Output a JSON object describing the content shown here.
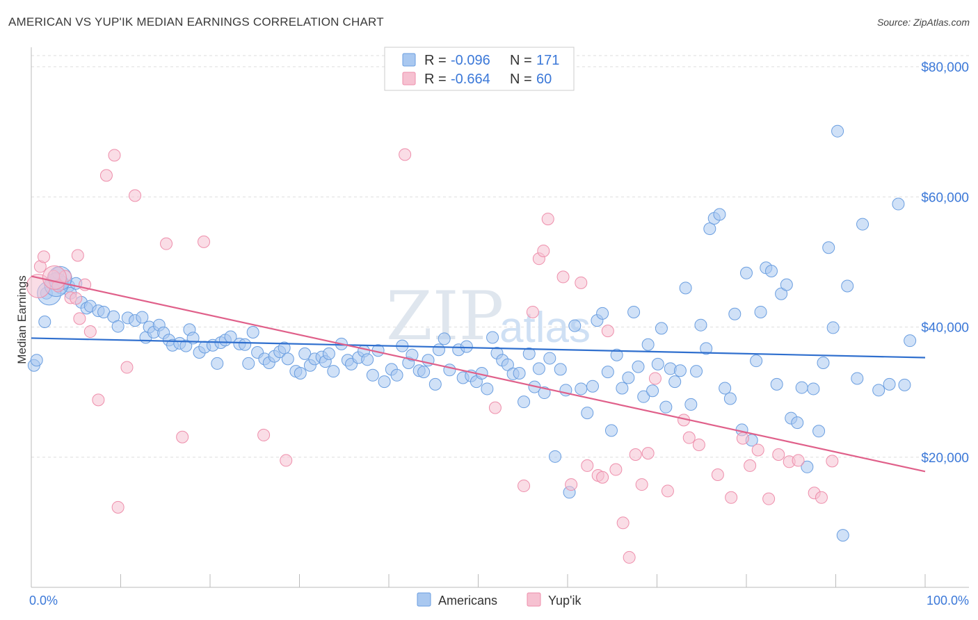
{
  "title": "AMERICAN VS YUP'IK MEDIAN EARNINGS CORRELATION CHART",
  "source": "Source: ZipAtlas.com",
  "watermark": {
    "main": "ZIP",
    "sub": "atlas"
  },
  "colors": {
    "americans_fill": "#a9c8f0",
    "americans_stroke": "#6a9ee0",
    "americans_line": "#2f6fce",
    "yupik_fill": "#f6c1d1",
    "yupik_stroke": "#ee8eab",
    "yupik_line": "#e0608a",
    "axis_text": "#3b78d8",
    "grid": "#dddddd"
  },
  "legend_top": {
    "rows": [
      {
        "r_label": "R =",
        "r_value": "-0.096",
        "n_label": "N =",
        "n_value": "171"
      },
      {
        "r_label": "R =",
        "r_value": "-0.664",
        "n_label": "N =",
        "n_value": "60"
      }
    ]
  },
  "chart_data": {
    "type": "scatter",
    "xlabel": "",
    "ylabel": "Median Earnings",
    "x_tick_labels": [
      "0.0%",
      "100.0%"
    ],
    "y_tick_labels": [
      "$20,000",
      "$40,000",
      "$60,000",
      "$80,000"
    ],
    "y_ticks": [
      20000,
      40000,
      60000,
      80000
    ],
    "xlim": [
      0,
      100
    ],
    "ylim": [
      0,
      80000
    ],
    "grid": true,
    "legend_position": "bottom-center",
    "series": [
      {
        "name": "Americans",
        "trend": {
          "x": [
            0,
            100
          ],
          "y": [
            38300,
            35300
          ]
        },
        "points": [
          [
            0.3,
            34100
          ],
          [
            0.6,
            34900
          ],
          [
            1.5,
            40800
          ],
          [
            1.7,
            45200
          ],
          [
            2.2,
            46800
          ],
          [
            2.8,
            47500
          ],
          [
            3.0,
            48300
          ],
          [
            3.3,
            46000
          ],
          [
            3.5,
            46900
          ],
          [
            4.2,
            46300
          ],
          [
            4.4,
            45200
          ],
          [
            5.0,
            46700
          ],
          [
            5.6,
            43800
          ],
          [
            6.2,
            42900
          ],
          [
            6.6,
            43200
          ],
          [
            7.5,
            42500
          ],
          [
            8.1,
            42300
          ],
          [
            9.2,
            41600
          ],
          [
            9.7,
            40100
          ],
          [
            10.8,
            41400
          ],
          [
            11.6,
            41000
          ],
          [
            12.4,
            41500
          ],
          [
            12.8,
            38400
          ],
          [
            13.2,
            40000
          ],
          [
            13.7,
            39200
          ],
          [
            14.3,
            40300
          ],
          [
            14.8,
            39100
          ],
          [
            15.4,
            38000
          ],
          [
            15.8,
            37200
          ],
          [
            16.6,
            37500
          ],
          [
            17.3,
            37100
          ],
          [
            17.7,
            39600
          ],
          [
            18.1,
            38300
          ],
          [
            18.8,
            36100
          ],
          [
            19.4,
            36900
          ],
          [
            20.3,
            37200
          ],
          [
            20.8,
            34400
          ],
          [
            21.2,
            37600
          ],
          [
            21.7,
            38000
          ],
          [
            22.3,
            38500
          ],
          [
            23.3,
            37400
          ],
          [
            23.9,
            37300
          ],
          [
            24.3,
            34400
          ],
          [
            24.8,
            39200
          ],
          [
            25.3,
            36100
          ],
          [
            26.1,
            35100
          ],
          [
            26.6,
            34500
          ],
          [
            27.2,
            35500
          ],
          [
            27.8,
            36200
          ],
          [
            28.3,
            36800
          ],
          [
            28.7,
            35100
          ],
          [
            29.6,
            33200
          ],
          [
            30.1,
            32900
          ],
          [
            30.6,
            35900
          ],
          [
            31.2,
            34100
          ],
          [
            31.7,
            35100
          ],
          [
            32.5,
            35400
          ],
          [
            32.9,
            34700
          ],
          [
            33.3,
            35900
          ],
          [
            33.8,
            33200
          ],
          [
            34.7,
            37400
          ],
          [
            35.4,
            34900
          ],
          [
            35.8,
            34300
          ],
          [
            36.6,
            35300
          ],
          [
            37.2,
            36300
          ],
          [
            37.6,
            35000
          ],
          [
            38.2,
            32600
          ],
          [
            38.8,
            36400
          ],
          [
            39.5,
            31600
          ],
          [
            40.3,
            33500
          ],
          [
            40.9,
            32600
          ],
          [
            41.5,
            37100
          ],
          [
            42.2,
            34500
          ],
          [
            42.6,
            35700
          ],
          [
            43.4,
            33300
          ],
          [
            43.9,
            33100
          ],
          [
            44.4,
            34900
          ],
          [
            45.2,
            31200
          ],
          [
            45.6,
            36500
          ],
          [
            46.2,
            38200
          ],
          [
            46.8,
            33400
          ],
          [
            47.8,
            36500
          ],
          [
            48.3,
            32200
          ],
          [
            48.7,
            37000
          ],
          [
            49.2,
            32500
          ],
          [
            49.8,
            31600
          ],
          [
            50.4,
            32900
          ],
          [
            51.0,
            30500
          ],
          [
            51.6,
            38400
          ],
          [
            52.1,
            36000
          ],
          [
            52.7,
            34900
          ],
          [
            53.3,
            34200
          ],
          [
            53.9,
            32800
          ],
          [
            54.6,
            32900
          ],
          [
            55.1,
            28500
          ],
          [
            55.7,
            35900
          ],
          [
            56.3,
            30800
          ],
          [
            56.8,
            33600
          ],
          [
            57.4,
            29900
          ],
          [
            58.0,
            35200
          ],
          [
            58.6,
            20100
          ],
          [
            59.2,
            33500
          ],
          [
            59.8,
            30300
          ],
          [
            60.2,
            14600
          ],
          [
            60.8,
            40200
          ],
          [
            61.5,
            30500
          ],
          [
            62.2,
            26800
          ],
          [
            62.8,
            30900
          ],
          [
            63.3,
            41000
          ],
          [
            63.9,
            42100
          ],
          [
            64.5,
            33100
          ],
          [
            64.9,
            24100
          ],
          [
            65.5,
            35700
          ],
          [
            66.1,
            30600
          ],
          [
            66.8,
            32200
          ],
          [
            67.4,
            42300
          ],
          [
            67.9,
            33900
          ],
          [
            68.5,
            29300
          ],
          [
            69.0,
            37300
          ],
          [
            69.5,
            30200
          ],
          [
            70.1,
            34300
          ],
          [
            70.5,
            39800
          ],
          [
            71.0,
            27700
          ],
          [
            71.5,
            33600
          ],
          [
            72.0,
            31600
          ],
          [
            72.6,
            33300
          ],
          [
            73.2,
            46000
          ],
          [
            73.8,
            28100
          ],
          [
            74.4,
            33200
          ],
          [
            74.9,
            40300
          ],
          [
            75.5,
            36700
          ],
          [
            75.9,
            55100
          ],
          [
            76.4,
            56700
          ],
          [
            77.0,
            57300
          ],
          [
            77.6,
            30600
          ],
          [
            78.2,
            29000
          ],
          [
            78.7,
            42000
          ],
          [
            79.5,
            24200
          ],
          [
            80.0,
            48300
          ],
          [
            80.6,
            22600
          ],
          [
            81.1,
            34800
          ],
          [
            81.6,
            42300
          ],
          [
            82.2,
            49100
          ],
          [
            82.8,
            48600
          ],
          [
            83.4,
            31200
          ],
          [
            83.9,
            45100
          ],
          [
            84.5,
            46500
          ],
          [
            85.0,
            26000
          ],
          [
            85.7,
            25300
          ],
          [
            86.2,
            30700
          ],
          [
            86.8,
            18500
          ],
          [
            87.5,
            30500
          ],
          [
            88.1,
            24000
          ],
          [
            88.6,
            34500
          ],
          [
            89.2,
            52200
          ],
          [
            89.7,
            39900
          ],
          [
            90.2,
            70100
          ],
          [
            90.8,
            8000
          ],
          [
            91.3,
            46300
          ],
          [
            92.4,
            32100
          ],
          [
            93.0,
            55800
          ],
          [
            94.8,
            30300
          ],
          [
            96.0,
            31200
          ],
          [
            97.0,
            58900
          ],
          [
            97.7,
            31100
          ],
          [
            98.3,
            37900
          ]
        ],
        "big_points": [
          [
            2.0,
            45200
          ],
          [
            2.8,
            46500
          ],
          [
            3.2,
            47500
          ]
        ]
      },
      {
        "name": "Yup'ik",
        "trend": {
          "x": [
            0,
            100
          ],
          "y": [
            47800,
            17800
          ]
        },
        "points": [
          [
            1.0,
            49300
          ],
          [
            1.4,
            50800
          ],
          [
            2.5,
            47800
          ],
          [
            3.0,
            46300
          ],
          [
            3.8,
            47800
          ],
          [
            4.4,
            44500
          ],
          [
            5.0,
            44400
          ],
          [
            5.2,
            51000
          ],
          [
            5.4,
            41300
          ],
          [
            6.0,
            46500
          ],
          [
            6.6,
            39300
          ],
          [
            7.5,
            28800
          ],
          [
            8.4,
            63300
          ],
          [
            9.3,
            66400
          ],
          [
            9.7,
            12300
          ],
          [
            10.7,
            33800
          ],
          [
            11.6,
            60200
          ],
          [
            15.1,
            52800
          ],
          [
            16.9,
            23100
          ],
          [
            19.3,
            53100
          ],
          [
            26.0,
            23400
          ],
          [
            28.5,
            19500
          ],
          [
            41.8,
            66500
          ],
          [
            51.9,
            27600
          ],
          [
            55.1,
            15600
          ],
          [
            56.1,
            42300
          ],
          [
            56.8,
            50500
          ],
          [
            57.3,
            51700
          ],
          [
            57.8,
            56600
          ],
          [
            59.5,
            47700
          ],
          [
            60.4,
            15800
          ],
          [
            61.5,
            46800
          ],
          [
            62.2,
            18700
          ],
          [
            63.4,
            17200
          ],
          [
            63.9,
            16900
          ],
          [
            64.5,
            39400
          ],
          [
            65.4,
            18100
          ],
          [
            66.2,
            9900
          ],
          [
            66.9,
            4600
          ],
          [
            67.6,
            20400
          ],
          [
            68.3,
            15800
          ],
          [
            69.0,
            20600
          ],
          [
            69.8,
            32100
          ],
          [
            71.2,
            14800
          ],
          [
            73.0,
            25700
          ],
          [
            73.6,
            23000
          ],
          [
            74.7,
            21900
          ],
          [
            76.8,
            17300
          ],
          [
            78.3,
            13800
          ],
          [
            79.6,
            22900
          ],
          [
            80.4,
            18700
          ],
          [
            81.3,
            21100
          ],
          [
            82.5,
            13600
          ],
          [
            83.6,
            20400
          ],
          [
            84.8,
            19300
          ],
          [
            85.8,
            19500
          ],
          [
            87.6,
            14500
          ],
          [
            88.4,
            13800
          ],
          [
            89.6,
            19400
          ]
        ],
        "big_points": [
          [
            0.8,
            46300
          ],
          [
            2.6,
            47600
          ]
        ]
      }
    ]
  }
}
